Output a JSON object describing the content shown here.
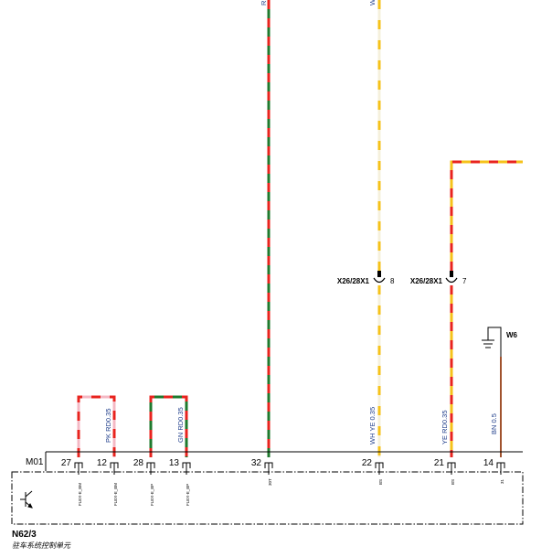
{
  "module": {
    "connector": "M01",
    "id": "N62/3",
    "name": "驻车系统控制单元"
  },
  "pins": [
    "27",
    "12",
    "28",
    "13",
    "32",
    "22",
    "21",
    "14"
  ],
  "signals": [
    "FLEX-E_BM",
    "FLEX-E_BM",
    "FLEX-E_BP",
    "FLEX-E_BP",
    "30T",
    "BS",
    "BS",
    "31"
  ],
  "wire_labels": {
    "pk_rd": "PK RD0.35",
    "gn_rd": "GN RD0.35",
    "wh_ye": "WH YE 0.35",
    "ye_rd": "YE RD0.35",
    "bn": "BN 0.5"
  },
  "top_labels": {
    "rd_wire": "RD",
    "wh_wire": "WH"
  },
  "connectors": {
    "left": {
      "name": "X26/28X1",
      "pin": "8"
    },
    "right": {
      "name": "X26/28X1",
      "pin": "7"
    }
  },
  "ground": {
    "name": "W6"
  },
  "colors": {
    "red": "#e8231e",
    "green": "#1f7a2e",
    "pink": "#f4b8c4",
    "yellow": "#f5c21a",
    "brown": "#a0522d",
    "label_blue": "#1f3d8a"
  }
}
